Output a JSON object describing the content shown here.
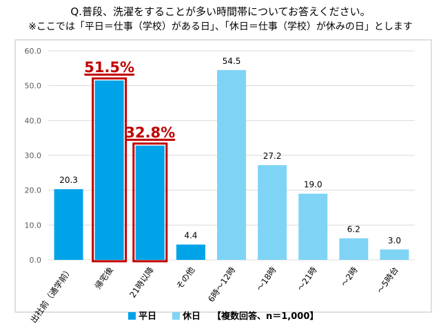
{
  "title": "Q.普段、洗濯をすることが多い時間帯についてお答えください。",
  "subtitle": "※ここでは「平日＝仕事（学校）がある日」、「休日＝仕事（学校）が休みの日」とします",
  "colors": {
    "weekday": "#00A3E8",
    "holiday": "#7FD4F5",
    "highlight": "#C00000",
    "grid": "#D9D9D9",
    "text": "#000000",
    "tick": "#595959"
  },
  "chart_data": {
    "type": "bar",
    "ylim": [
      0,
      60
    ],
    "yticks": [
      "0.0",
      "10.0",
      "20.0",
      "30.0",
      "40.0",
      "50.0",
      "60.0"
    ],
    "ytick_values": [
      0,
      10,
      20,
      30,
      40,
      50,
      60
    ],
    "grid": true,
    "categories": [
      "出社前（通学前）",
      "帰宅後",
      "21時以降",
      "その他",
      "6時～12時",
      "～18時",
      "～21時",
      "～2時",
      "～5時台"
    ],
    "values": [
      20.3,
      51.5,
      32.8,
      4.4,
      54.5,
      27.2,
      19.0,
      6.2,
      3.0
    ],
    "value_labels": [
      "20.3",
      "",
      "",
      "4.4",
      "54.5",
      "27.2",
      "19.0",
      "6.2",
      "3.0"
    ],
    "groups": [
      "weekday",
      "weekday",
      "weekday",
      "weekday",
      "holiday",
      "holiday",
      "holiday",
      "holiday",
      "holiday"
    ],
    "highlight": [
      {
        "index": 1,
        "label": "51.5%"
      },
      {
        "index": 2,
        "label": "32.8%"
      }
    ],
    "legend": {
      "placement": "bottom-center",
      "items": [
        {
          "name": "平日",
          "group": "weekday"
        },
        {
          "name": "休日",
          "group": "holiday"
        }
      ],
      "note": "【複数回答、n＝1,000】"
    }
  }
}
